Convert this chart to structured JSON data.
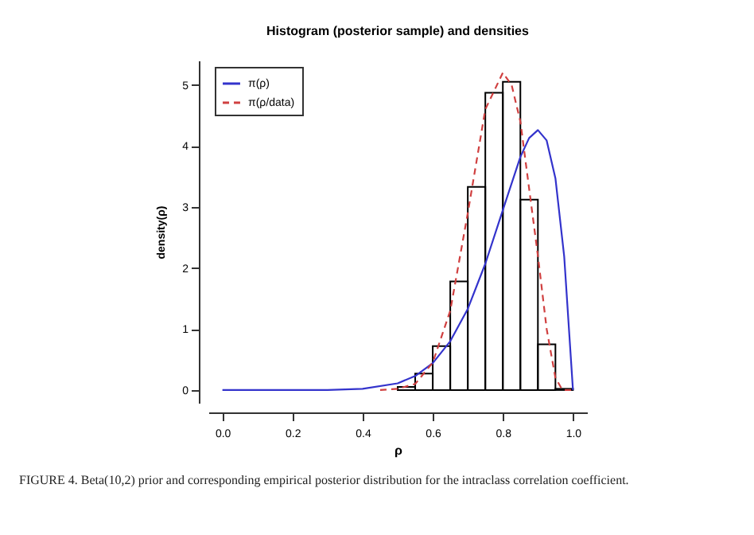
{
  "chart_data": {
    "type": "histogram",
    "title": "Histogram (posterior sample) and densities",
    "xlabel": "ρ",
    "ylabel": "density(ρ)",
    "bins": [
      0.5,
      0.55,
      0.6,
      0.65,
      0.7,
      0.75,
      0.8,
      0.85,
      0.9,
      0.95,
      1.0
    ],
    "values": [
      0.05,
      0.27,
      0.72,
      1.78,
      3.33,
      4.87,
      5.05,
      3.12,
      0.75,
      0.02
    ],
    "color": "#000000",
    "series": [
      {
        "name": "π(ρ)",
        "type": "line",
        "color": "#3333cc",
        "line_style": "solid",
        "x": [
          0,
          0.3,
          0.4,
          0.5,
          0.55,
          0.6,
          0.65,
          0.7,
          0.75,
          0.8,
          0.85,
          0.875,
          0.9,
          0.925,
          0.95,
          0.975,
          1.0
        ],
        "values": [
          0,
          0,
          0.02,
          0.11,
          0.23,
          0.44,
          0.8,
          1.33,
          2.07,
          2.95,
          3.82,
          4.13,
          4.26,
          4.09,
          3.47,
          2.19,
          0
        ]
      },
      {
        "name": "π(ρ/data)",
        "type": "line",
        "color": "#d04040",
        "line_style": "dashed",
        "x": [
          0.45,
          0.5,
          0.55,
          0.6,
          0.65,
          0.7,
          0.75,
          0.8,
          0.825,
          0.85,
          0.9,
          0.925,
          0.95,
          0.97,
          1.0
        ],
        "values": [
          0,
          0.02,
          0.1,
          0.45,
          1.3,
          2.9,
          4.6,
          5.2,
          5.0,
          4.4,
          2.2,
          1.0,
          0.2,
          0,
          0
        ]
      }
    ],
    "xlim": [
      -0.04,
      1.04
    ],
    "ylim": [
      -0.21,
      5.4
    ],
    "xticks": [
      {
        "value": 0,
        "label": "0.0"
      },
      0.2,
      0.4,
      0.6,
      0.8,
      {
        "value": 1,
        "label": "1.0"
      }
    ],
    "yticks": [
      0,
      1,
      2,
      3,
      4,
      5
    ],
    "grid": false,
    "legend": "top left",
    "marker": "none",
    "annotations": [
      "FIGURE 4.    Beta(10,2) prior and corresponding empirical posterior distribution for the intraclass correlation coefficient."
    ]
  }
}
